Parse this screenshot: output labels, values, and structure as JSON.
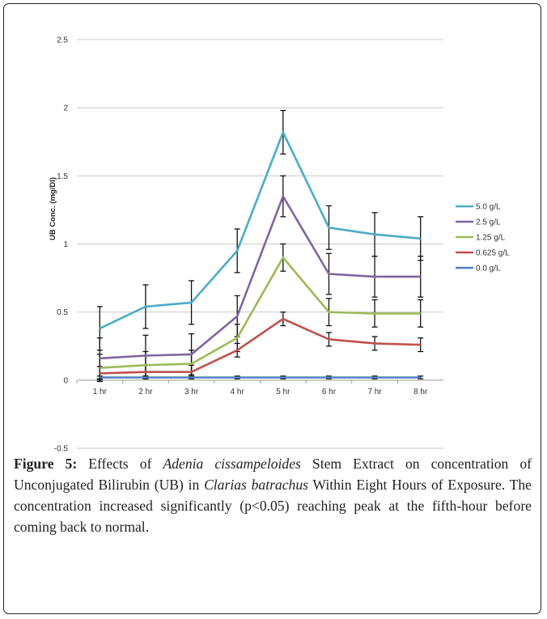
{
  "chart_data": {
    "type": "line",
    "title": "",
    "xlabel": "",
    "ylabel": "UB Conc. (mg/Dl)",
    "categories": [
      "1 hr",
      "2 hr",
      "3 hr",
      "4 hr",
      "5 hr",
      "6 hr",
      "7 hr",
      "8 hr"
    ],
    "ylim": [
      -0.5,
      2.5
    ],
    "yticks": [
      "-0.5",
      "0",
      "0.5",
      "1",
      "1.5",
      "2",
      "2.5"
    ],
    "grid": true,
    "legend_position": "right",
    "series": [
      {
        "name": "5.0 g/L",
        "color": "#4bacc6",
        "values": [
          0.38,
          0.54,
          0.57,
          0.95,
          1.82,
          1.12,
          1.07,
          1.04
        ],
        "errors": [
          0.16,
          0.16,
          0.16,
          0.16,
          0.16,
          0.16,
          0.16,
          0.16
        ]
      },
      {
        "name": "2.5 g/L",
        "color": "#8064a2",
        "values": [
          0.16,
          0.18,
          0.19,
          0.47,
          1.35,
          0.78,
          0.76,
          0.76
        ],
        "errors": [
          0.15,
          0.15,
          0.15,
          0.15,
          0.15,
          0.15,
          0.15,
          0.15
        ]
      },
      {
        "name": "1.25 g/L",
        "color": "#9bbb59",
        "values": [
          0.09,
          0.11,
          0.12,
          0.31,
          0.9,
          0.5,
          0.49,
          0.49
        ],
        "errors": [
          0.1,
          0.1,
          0.1,
          0.1,
          0.1,
          0.1,
          0.1,
          0.1
        ]
      },
      {
        "name": "0.625 g/L",
        "color": "#c0504d",
        "values": [
          0.05,
          0.06,
          0.06,
          0.22,
          0.45,
          0.3,
          0.27,
          0.26
        ],
        "errors": [
          0.05,
          0.05,
          0.05,
          0.05,
          0.05,
          0.05,
          0.05,
          0.05
        ]
      },
      {
        "name": "0.0 g/L",
        "color": "#4f81bd",
        "values": [
          0.02,
          0.02,
          0.02,
          0.02,
          0.02,
          0.02,
          0.02,
          0.02
        ],
        "errors": [
          0.01,
          0.01,
          0.01,
          0.01,
          0.01,
          0.01,
          0.01,
          0.01
        ]
      }
    ]
  },
  "caption": {
    "label": "Figure 5:",
    "part1": " Effects of ",
    "species1": "Adenia cissampeloides",
    "part2": " Stem Extract on concentration of Unconjugated Bilirubin (UB) in ",
    "species2": "Clarias batrachus",
    "part3": " Within Eight Hours of Exposure. The concentration increased significantly (p<0.05) reaching peak at the fifth-hour before coming back to normal."
  }
}
